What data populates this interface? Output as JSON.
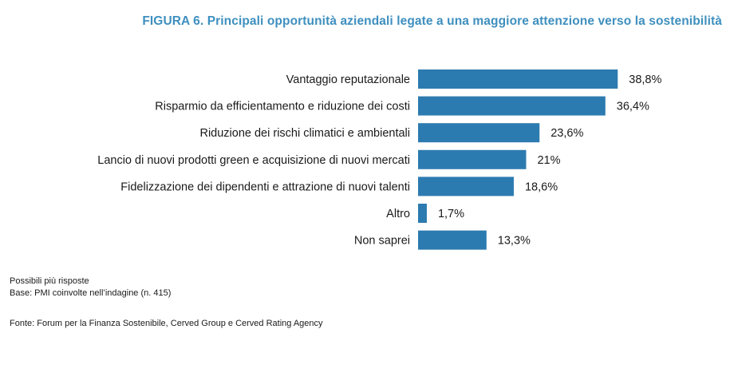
{
  "figure_title": "FIGURA 6. Principali opportunità aziendali legate a una maggiore attenzione verso la sostenibilità",
  "colors": {
    "title": "#3E8FBF",
    "bar": "#2C7BB0",
    "text": "#1a1a1a"
  },
  "chart_data": {
    "type": "bar",
    "orientation": "horizontal",
    "title": "FIGURA 6. Principali opportunità aziendali legate a una maggiore attenzione verso la sostenibilità",
    "categories": [
      "Vantaggio reputazionale",
      "Risparmio da efficientamento e riduzione dei costi",
      "Riduzione dei rischi climatici e ambientali",
      "Lancio di nuovi prodotti green e acquisizione di nuovi mercati",
      "Fidelizzazione dei dipendenti e attrazione di nuovi talenti",
      "Altro",
      "Non saprei"
    ],
    "values": [
      38.8,
      36.4,
      23.6,
      21,
      18.6,
      1.7,
      13.3
    ],
    "value_labels": [
      "38,8%",
      "36,4%",
      "23,6%",
      "21%",
      "18,6%",
      "1,7%",
      "13,3%"
    ],
    "xlim": [
      0,
      40
    ],
    "unit": "%",
    "grid": false,
    "xlabel": "",
    "ylabel": ""
  },
  "notes": {
    "line1": "Possibili più risposte",
    "line2": "Base: PMI coinvolte nell’indagine (n. 415)"
  },
  "source": "Fonte: Forum per la Finanza Sostenibile, Cerved Group e Cerved Rating Agency"
}
